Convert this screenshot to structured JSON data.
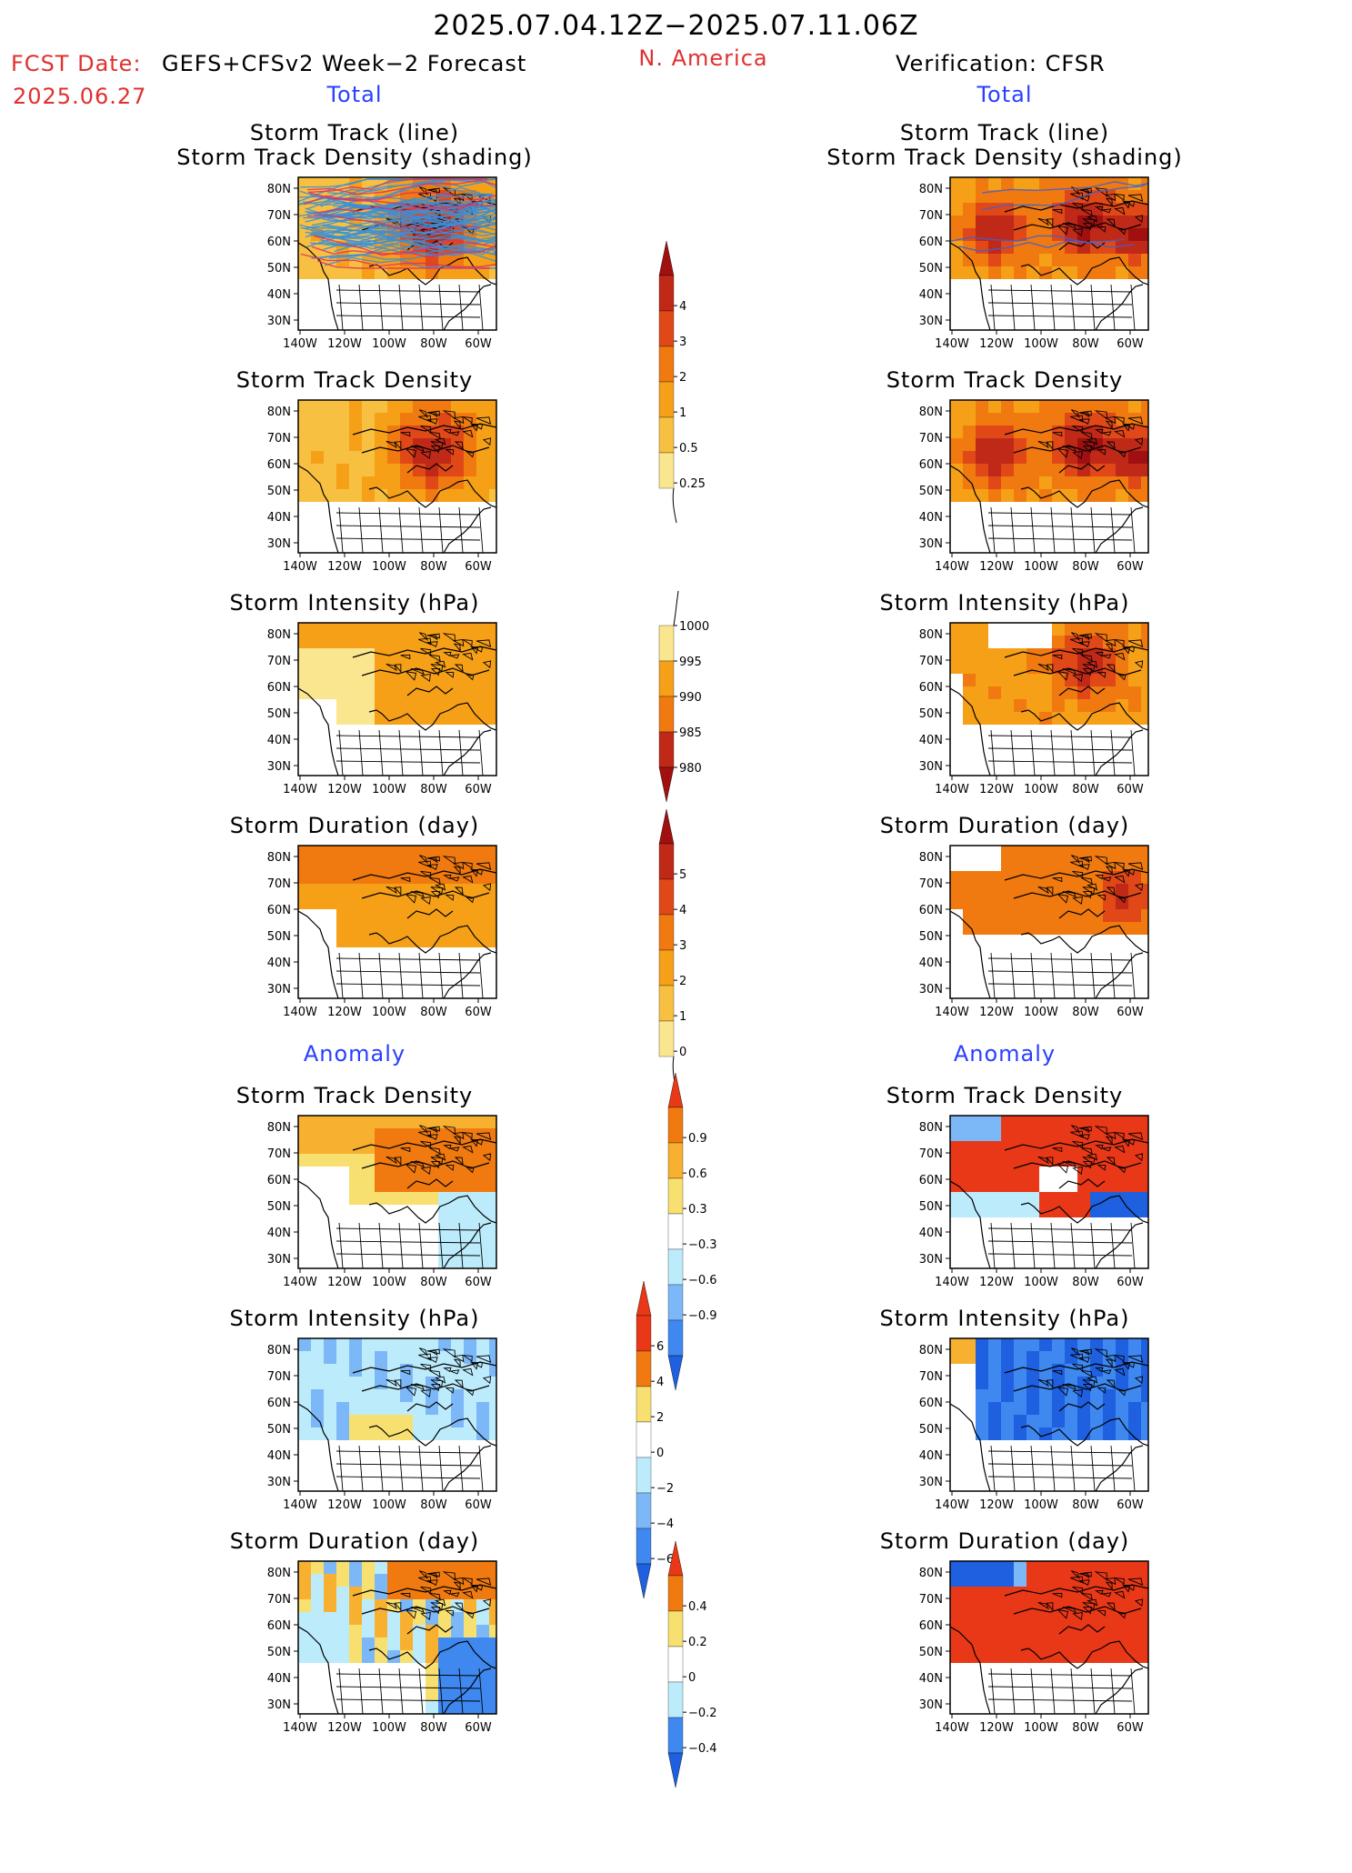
{
  "header": {
    "date_range": "2025.07.04.12Z−2025.07.11.06Z",
    "region": "N. America",
    "fcst_label": "FCST Date:",
    "fcst_model": "GEFS+CFSv2 Week−2 Forecast",
    "fcst_date": "2025.06.27",
    "verification": "Verification: CFSR"
  },
  "sections": {
    "total": "Total",
    "anomaly": "Anomaly"
  },
  "panel_titles": {
    "track_line": "Storm Track (line)",
    "track_shading": "Storm Track Density (shading)",
    "density": "Storm Track Density",
    "intensity": "Storm Intensity (hPa)",
    "duration": "Storm Duration (day)"
  },
  "axes": {
    "lat_labels": [
      "80N",
      "70N",
      "60N",
      "50N",
      "40N",
      "30N"
    ],
    "lon_labels": [
      "140W",
      "120W",
      "100W",
      "80W",
      "60W"
    ]
  },
  "colorbars": {
    "density_total": [
      "4",
      "3",
      "2",
      "1",
      "0.5",
      "0.25"
    ],
    "intensity_total": [
      "1000",
      "995",
      "990",
      "985",
      "980"
    ],
    "duration_total": [
      "5",
      "4",
      "3",
      "2",
      "1",
      "0"
    ],
    "density_anom": [
      "0.9",
      "0.6",
      "0.3",
      "−0.3",
      "−0.6",
      "−0.9"
    ],
    "intensity_anom": [
      "6",
      "4",
      "2",
      "0",
      "−2",
      "−4",
      "−6"
    ],
    "duration_anom": [
      "0.4",
      "0.2",
      "0",
      "−0.2",
      "−0.4"
    ]
  },
  "colors": {
    "header_red": "#e03030",
    "section_blue": "#2840ff",
    "track_line_blue": "#3a8fd8",
    "warm_scale": [
      "#fff8b0",
      "#fbe690",
      "#f8c040",
      "#f6a018",
      "#f07a10",
      "#e04818",
      "#c02818",
      "#a01010"
    ],
    "anom_scale": [
      "#1f60e0",
      "#3e88f0",
      "#7cb8f8",
      "#bcecfc",
      "#ffffff",
      "#f8e070",
      "#f8b030",
      "#f07a10",
      "#e83818"
    ]
  }
}
